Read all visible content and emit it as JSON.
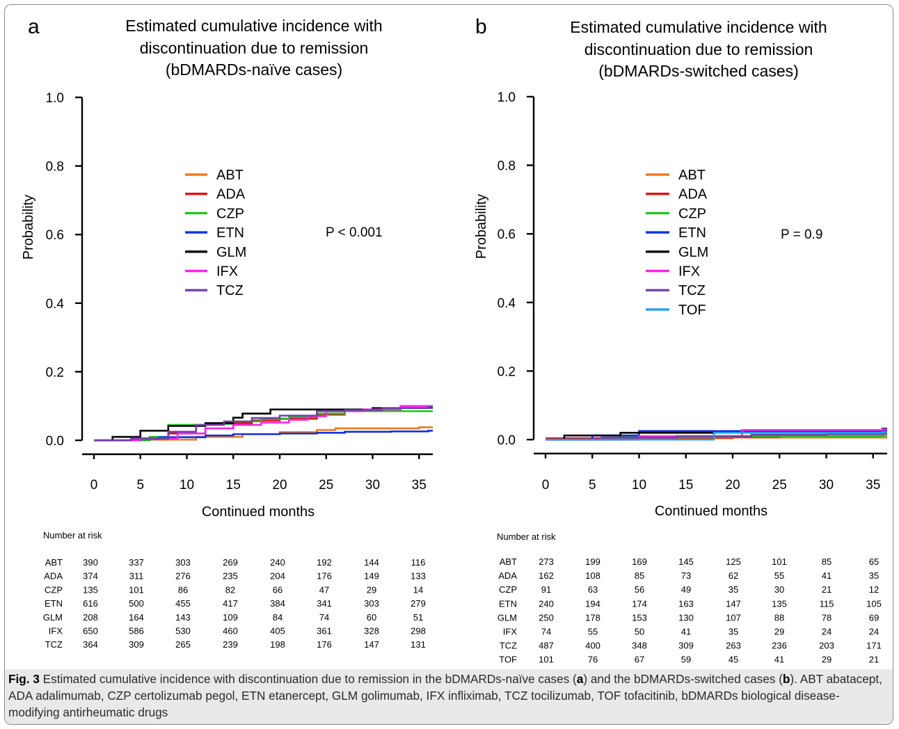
{
  "chart_data": [
    {
      "type": "line",
      "panel_letter": "a",
      "title": [
        "Estimated cumulative incidence with",
        "discontinuation due to remission",
        "(bDMARDs-naïve cases)"
      ],
      "xlabel": "Continued months",
      "ylabel": "Probability",
      "xlim": [
        0,
        36
      ],
      "ylim": [
        0,
        1.0
      ],
      "xticks": [
        "0",
        "5",
        "10",
        "15",
        "20",
        "25",
        "30",
        "35"
      ],
      "yticks": [
        "0.0",
        "0.2",
        "0.4",
        "0.6",
        "0.8",
        "1.0"
      ],
      "annotation": "P < 0.001",
      "legend_position": "center",
      "series": [
        {
          "name": "ABT",
          "color": "#f07a1a",
          "x": [
            0,
            5,
            11,
            16,
            20,
            24,
            26,
            35,
            36
          ],
          "y": [
            0,
            0.002,
            0.01,
            0.018,
            0.024,
            0.03,
            0.035,
            0.038,
            0.038
          ]
        },
        {
          "name": "ADA",
          "color": "#e01010",
          "x": [
            0,
            4,
            8,
            12,
            15,
            17,
            20,
            24,
            27,
            33,
            36
          ],
          "y": [
            0,
            0.004,
            0.02,
            0.035,
            0.05,
            0.058,
            0.063,
            0.075,
            0.088,
            0.094,
            0.096
          ]
        },
        {
          "name": "CZP",
          "color": "#1ec41e",
          "x": [
            0,
            6,
            8,
            12,
            15,
            18,
            21,
            24,
            27,
            30,
            36
          ],
          "y": [
            0,
            0.01,
            0.045,
            0.048,
            0.055,
            0.062,
            0.068,
            0.078,
            0.085,
            0.085,
            0.085
          ]
        },
        {
          "name": "ETN",
          "color": "#1030e0",
          "x": [
            0,
            4,
            7,
            12,
            15,
            20,
            24,
            27,
            32,
            36
          ],
          "y": [
            0,
            0.004,
            0.009,
            0.014,
            0.018,
            0.02,
            0.022,
            0.025,
            0.026,
            0.028
          ]
        },
        {
          "name": "GLM",
          "color": "#000000",
          "x": [
            0,
            2,
            5,
            8,
            12,
            15,
            16,
            19,
            25,
            30,
            36
          ],
          "y": [
            0,
            0.01,
            0.028,
            0.042,
            0.05,
            0.066,
            0.078,
            0.09,
            0.09,
            0.094,
            0.095
          ]
        },
        {
          "name": "IFX",
          "color": "#ff22ee",
          "x": [
            0,
            5,
            9,
            12,
            15,
            18,
            21,
            23,
            25,
            29,
            33,
            36
          ],
          "y": [
            0,
            0.005,
            0.02,
            0.035,
            0.045,
            0.052,
            0.06,
            0.07,
            0.085,
            0.09,
            0.1,
            0.1
          ]
        },
        {
          "name": "TCZ",
          "color": "#7040a8",
          "x": [
            0,
            4,
            8,
            11,
            14,
            17,
            20,
            24,
            27,
            31,
            36
          ],
          "y": [
            0,
            0.006,
            0.025,
            0.045,
            0.055,
            0.065,
            0.072,
            0.085,
            0.088,
            0.094,
            0.097
          ]
        }
      ],
      "risk_table": {
        "header": "Number at risk",
        "rows": [
          {
            "label": "ABT",
            "values": [
              "390",
              "337",
              "303",
              "269",
              "240",
              "192",
              "144",
              "116"
            ]
          },
          {
            "label": "ADA",
            "values": [
              "374",
              "311",
              "276",
              "235",
              "204",
              "176",
              "149",
              "133"
            ]
          },
          {
            "label": "CZP",
            "values": [
              "135",
              "101",
              "86",
              "82",
              "66",
              "47",
              "29",
              "14"
            ]
          },
          {
            "label": "ETN",
            "values": [
              "616",
              "500",
              "455",
              "417",
              "384",
              "341",
              "303",
              "279"
            ]
          },
          {
            "label": "GLM",
            "values": [
              "208",
              "164",
              "143",
              "109",
              "84",
              "74",
              "60",
              "51"
            ]
          },
          {
            "label": "IFX",
            "values": [
              "650",
              "586",
              "530",
              "460",
              "405",
              "361",
              "328",
              "298"
            ]
          },
          {
            "label": "TCZ",
            "values": [
              "364",
              "309",
              "265",
              "239",
              "198",
              "176",
              "147",
              "131"
            ]
          }
        ]
      }
    },
    {
      "type": "line",
      "panel_letter": "b",
      "title": [
        "Estimated cumulative incidence with",
        "discontinuation due to remission",
        "(bDMARDs-switched cases)"
      ],
      "xlabel": "Continued months",
      "ylabel": "Probability",
      "xlim": [
        0,
        36
      ],
      "ylim": [
        0,
        1.0
      ],
      "xticks": [
        "0",
        "5",
        "10",
        "15",
        "20",
        "25",
        "30",
        "35"
      ],
      "yticks": [
        "0.0",
        "0.2",
        "0.4",
        "0.6",
        "0.8",
        "1.0"
      ],
      "annotation": "P = 0.9",
      "legend_position": "center",
      "series": [
        {
          "name": "ABT",
          "color": "#f07a1a",
          "x": [
            0,
            10,
            15,
            20,
            24
          ],
          "y": [
            0,
            0.002,
            0.004,
            0.006,
            0.006
          ]
        },
        {
          "name": "ADA",
          "color": "#e01010",
          "x": [
            0,
            10,
            20,
            25,
            36
          ],
          "y": [
            0.004,
            0.006,
            0.008,
            0.01,
            0.012
          ]
        },
        {
          "name": "CZP",
          "color": "#1ec41e",
          "x": [
            0,
            8,
            20,
            36
          ],
          "y": [
            0,
            0.008,
            0.01,
            0.012
          ]
        },
        {
          "name": "ETN",
          "color": "#1030e0",
          "x": [
            0,
            5,
            10,
            18,
            36
          ],
          "y": [
            0,
            0.012,
            0.025,
            0.025,
            0.025
          ]
        },
        {
          "name": "GLM",
          "color": "#000000",
          "x": [
            0,
            2,
            5,
            8,
            10,
            24,
            36
          ],
          "y": [
            0,
            0.012,
            0.012,
            0.02,
            0.02,
            0.02,
            0.032
          ]
        },
        {
          "name": "IFX",
          "color": "#ff22ee",
          "x": [
            0,
            10,
            21,
            36
          ],
          "y": [
            0,
            0.01,
            0.028,
            0.03
          ]
        },
        {
          "name": "TCZ",
          "color": "#7040a8",
          "x": [
            0,
            6,
            14,
            22,
            30,
            36
          ],
          "y": [
            0,
            0.006,
            0.01,
            0.014,
            0.016,
            0.018
          ]
        },
        {
          "name": "TOF",
          "color": "#1ea0f0",
          "x": [
            0,
            16,
            18,
            36
          ],
          "y": [
            0,
            0,
            0.02,
            0.022
          ]
        }
      ],
      "risk_table": {
        "header": "Number at risk",
        "rows": [
          {
            "label": "ABT",
            "values": [
              "273",
              "199",
              "169",
              "145",
              "125",
              "101",
              "85",
              "65"
            ]
          },
          {
            "label": "ADA",
            "values": [
              "162",
              "108",
              "85",
              "73",
              "62",
              "55",
              "41",
              "35"
            ]
          },
          {
            "label": "CZP",
            "values": [
              "91",
              "63",
              "56",
              "49",
              "35",
              "30",
              "21",
              "12"
            ]
          },
          {
            "label": "ETN",
            "values": [
              "240",
              "194",
              "174",
              "163",
              "147",
              "135",
              "115",
              "105"
            ]
          },
          {
            "label": "GLM",
            "values": [
              "250",
              "178",
              "153",
              "130",
              "107",
              "88",
              "78",
              "69"
            ]
          },
          {
            "label": "IFX",
            "values": [
              "74",
              "55",
              "50",
              "41",
              "35",
              "29",
              "24",
              "24"
            ]
          },
          {
            "label": "TCZ",
            "values": [
              "487",
              "400",
              "348",
              "309",
              "263",
              "236",
              "203",
              "171"
            ]
          },
          {
            "label": "TOF",
            "values": [
              "101",
              "76",
              "67",
              "59",
              "45",
              "41",
              "29",
              "21"
            ]
          }
        ]
      }
    }
  ],
  "caption": {
    "label": "Fig. 3",
    "segments": [
      {
        "text": " Estimated cumulative incidence with discontinuation due to remission in the bDMARDs-naïve cases ("
      },
      {
        "text": "a",
        "bold": true
      },
      {
        "text": ") and the bDMARDs-switched cases ("
      },
      {
        "text": "b",
        "bold": true
      },
      {
        "text": "). ABT abatacept, ADA adalimumab, CZP certolizumab pegol, ETN etanercept, GLM golimumab, IFX infliximab, TCZ tocilizumab, TOF tofacitinib, bDMARDs biological disease-modifying antirheumatic drugs"
      }
    ]
  }
}
